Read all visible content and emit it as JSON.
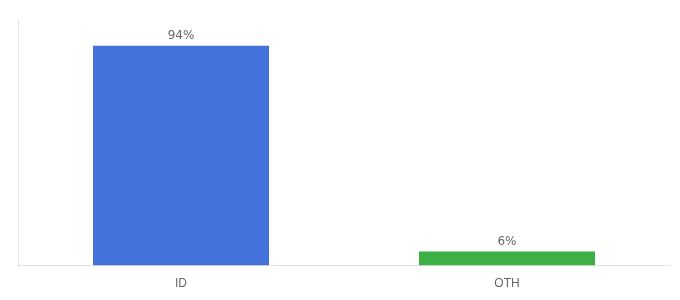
{
  "chart_data": {
    "type": "bar",
    "categories": [
      "ID",
      "OTH"
    ],
    "values": [
      94,
      6
    ],
    "value_labels": [
      "94%",
      "6%"
    ],
    "data_labels": true,
    "colors": [
      "#4472db",
      "#3cb045"
    ],
    "ylim": [
      0,
      105
    ],
    "tick_labels": "x",
    "grid": false
  }
}
